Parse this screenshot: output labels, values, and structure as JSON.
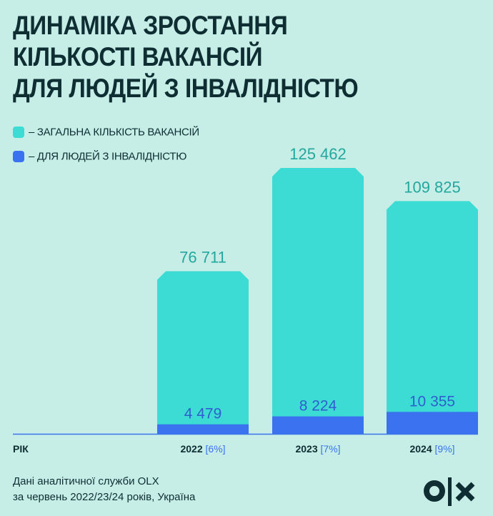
{
  "title": [
    "ДИНАМІКА ЗРОСТАННЯ",
    "КІЛЬКОСТІ ВАКАНСІЙ",
    "ДЛЯ ЛЮДЕЙ З ІНВАЛІДНІСТЮ"
  ],
  "chart_data": {
    "type": "bar",
    "stacked": "overlay",
    "categories": [
      "2022",
      "2023",
      "2024"
    ],
    "category_shares": [
      "[6%]",
      "[7%]",
      "[9%]"
    ],
    "xlabel": "РІК",
    "series": [
      {
        "name": "– ЗАГАЛЬНА КІЛЬКІСТЬ ВАКАНСІЙ",
        "values": [
          76711,
          125462,
          109825
        ],
        "labels": [
          "76 711",
          "125 462",
          "109 825"
        ],
        "color": "#3cdcd4"
      },
      {
        "name": "– ДЛЯ ЛЮДЕЙ З ІНВАЛІДНІСТЮ",
        "values": [
          4479,
          8224,
          10355
        ],
        "labels": [
          "4 479",
          "8 224",
          "10 355"
        ],
        "color": "#3a72f0"
      }
    ],
    "ylim": [
      0,
      125462
    ],
    "grid": false,
    "legend": "top-left"
  },
  "footer": [
    "Дані аналітичної служби OLX",
    "за червень 2022/23/24 років, Україна"
  ],
  "logo": "OLX",
  "colors": {
    "background": "#c6eee6",
    "text": "#0f2e33",
    "total_label": "#23a79e",
    "disabled_label": "#2f5fcf",
    "share": "#3a72f0"
  }
}
